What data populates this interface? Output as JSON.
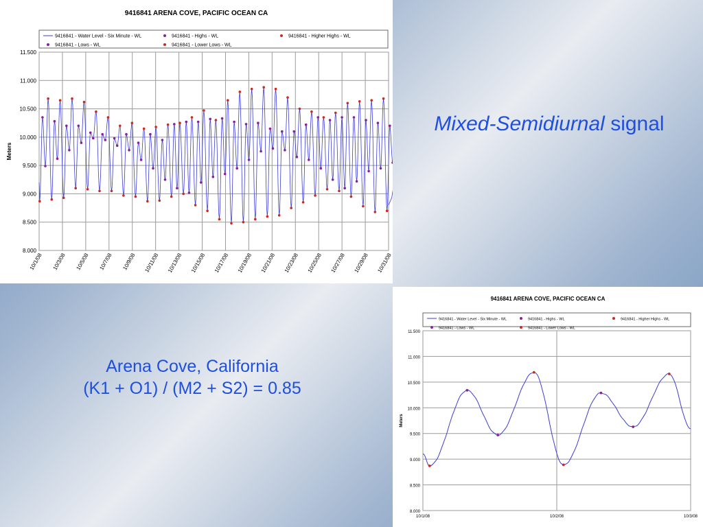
{
  "slide": {
    "headline_italic": "Mixed-Semidiurnal",
    "headline_rest": " signal",
    "caption_line1": "Arena Cove, California",
    "caption_line2": "(K1 + O1) / (M2 + S2) = 0.85",
    "text_color": "#1f4fe0"
  },
  "chart_data": [
    {
      "type": "line",
      "title": "9416841  ARENA COVE, PACIFIC OCEAN CA",
      "ylabel": "Meters",
      "ylim": [
        8.0,
        11.5
      ],
      "y_ticks": [
        "11.500",
        "11.000",
        "10.500",
        "10.000",
        "9.500",
        "9.000",
        "8.500",
        "8.000"
      ],
      "x_range_days": [
        "10/1/08",
        "11/1/08"
      ],
      "x_tick_labels": [
        "10/1/08",
        "10/3/08",
        "10/5/08",
        "10/7/08",
        "10/9/08",
        "10/11/08",
        "10/13/08",
        "10/15/08",
        "10/17/08",
        "10/19/08",
        "10/21/08",
        "10/23/08",
        "10/25/08",
        "10/27/08",
        "10/29/08",
        "10/31/08"
      ],
      "grid": true,
      "legend": [
        "9416841 - Water Level - Six Minute - WL",
        "9416841 - Highs - WL",
        "9416841 - Higher Highs - WL",
        "9416841 - Lows - WL",
        "9416841 - Lower Lows - WL"
      ],
      "colors": {
        "line": "#3b3bd6",
        "highs": "#8a1fa0",
        "higher_highs": "#cc2a1e",
        "lows": "#8a1fa0",
        "lower_lows": "#cc2a1e"
      },
      "series": [
        {
          "name": "9416841 - Higher Highs - WL",
          "values": [
            10.68,
            10.65,
            10.68,
            10.62,
            10.45,
            10.35,
            10.2,
            10.25,
            10.15,
            10.18,
            10.22,
            10.25,
            10.35,
            10.47,
            10.3,
            10.65,
            10.8,
            10.85,
            10.88,
            10.85,
            10.7,
            10.5,
            10.45,
            10.35,
            10.43,
            10.6,
            10.63,
            10.65,
            10.68,
            10.66,
            10.75
          ]
        },
        {
          "name": "9416841 - Highs - WL",
          "values": [
            10.35,
            10.28,
            10.2,
            10.2,
            10.08,
            10.05,
            9.98,
            10.05,
            9.9,
            10.05,
            9.95,
            10.23,
            10.27,
            10.27,
            10.32,
            10.33,
            10.27,
            10.23,
            10.25,
            10.15,
            10.1,
            10.1,
            10.22,
            10.35,
            10.3,
            10.35,
            10.35,
            10.3,
            10.25,
            10.2,
            10.25
          ]
        },
        {
          "name": "9416841 - Lows - WL",
          "values": [
            9.49,
            9.62,
            9.77,
            9.9,
            9.98,
            9.95,
            9.85,
            9.77,
            9.6,
            9.45,
            9.25,
            9.1,
            9.02,
            9.2,
            9.3,
            9.35,
            9.45,
            9.6,
            9.75,
            9.8,
            9.77,
            9.65,
            9.6,
            9.45,
            9.25,
            9.1,
            9.22,
            9.4,
            9.45,
            9.55,
            9.73
          ]
        },
        {
          "name": "9416841 - Lower Lows - WL",
          "values": [
            8.87,
            8.9,
            8.93,
            9.1,
            9.08,
            9.05,
            9.05,
            8.97,
            8.95,
            8.87,
            8.88,
            8.95,
            9.0,
            8.8,
            8.7,
            8.55,
            8.48,
            8.5,
            8.55,
            8.6,
            8.62,
            8.75,
            8.85,
            8.97,
            9.08,
            9.05,
            8.95,
            8.78,
            8.68,
            8.7,
            8.8
          ]
        }
      ]
    },
    {
      "type": "line",
      "title": "9416841  ARENA COVE, PACIFIC OCEAN CA",
      "ylabel": "Meters",
      "ylim": [
        8.0,
        11.5
      ],
      "y_ticks": [
        "11.500",
        "11.000",
        "10.500",
        "10.000",
        "9.500",
        "9.000",
        "8.500",
        "8.000"
      ],
      "x_range_days": [
        "10/1/08",
        "10/3/08"
      ],
      "x_tick_labels": [
        "10/1/08",
        "10/2/08",
        "10/3/08"
      ],
      "grid": true,
      "legend": [
        "9416841 - Water Level - Six Minute - WL",
        "9416841 - Highs - WL",
        "9416841 - Higher Highs - WL",
        "9416841 - Lows - WL",
        "9416841 - Lower Lows - WL"
      ],
      "colors": {
        "line": "#3b3bd6",
        "highs": "#8a1fa0",
        "higher_highs": "#cc2a1e",
        "lows": "#8a1fa0",
        "lower_lows": "#cc2a1e"
      },
      "series": [
        {
          "name": "9416841 - Lower Lows - WL",
          "x_days": [
            0.05,
            1.05
          ],
          "values": [
            8.87,
            8.89
          ]
        },
        {
          "name": "9416841 - Highs - WL",
          "x_days": [
            0.33,
            1.33
          ],
          "values": [
            10.34,
            10.29
          ]
        },
        {
          "name": "9416841 - Lows - WL",
          "x_days": [
            0.56,
            1.57
          ],
          "values": [
            9.47,
            9.63
          ]
        },
        {
          "name": "9416841 - Higher Highs - WL",
          "x_days": [
            0.83,
            1.84
          ],
          "values": [
            10.69,
            10.66
          ]
        }
      ]
    }
  ]
}
